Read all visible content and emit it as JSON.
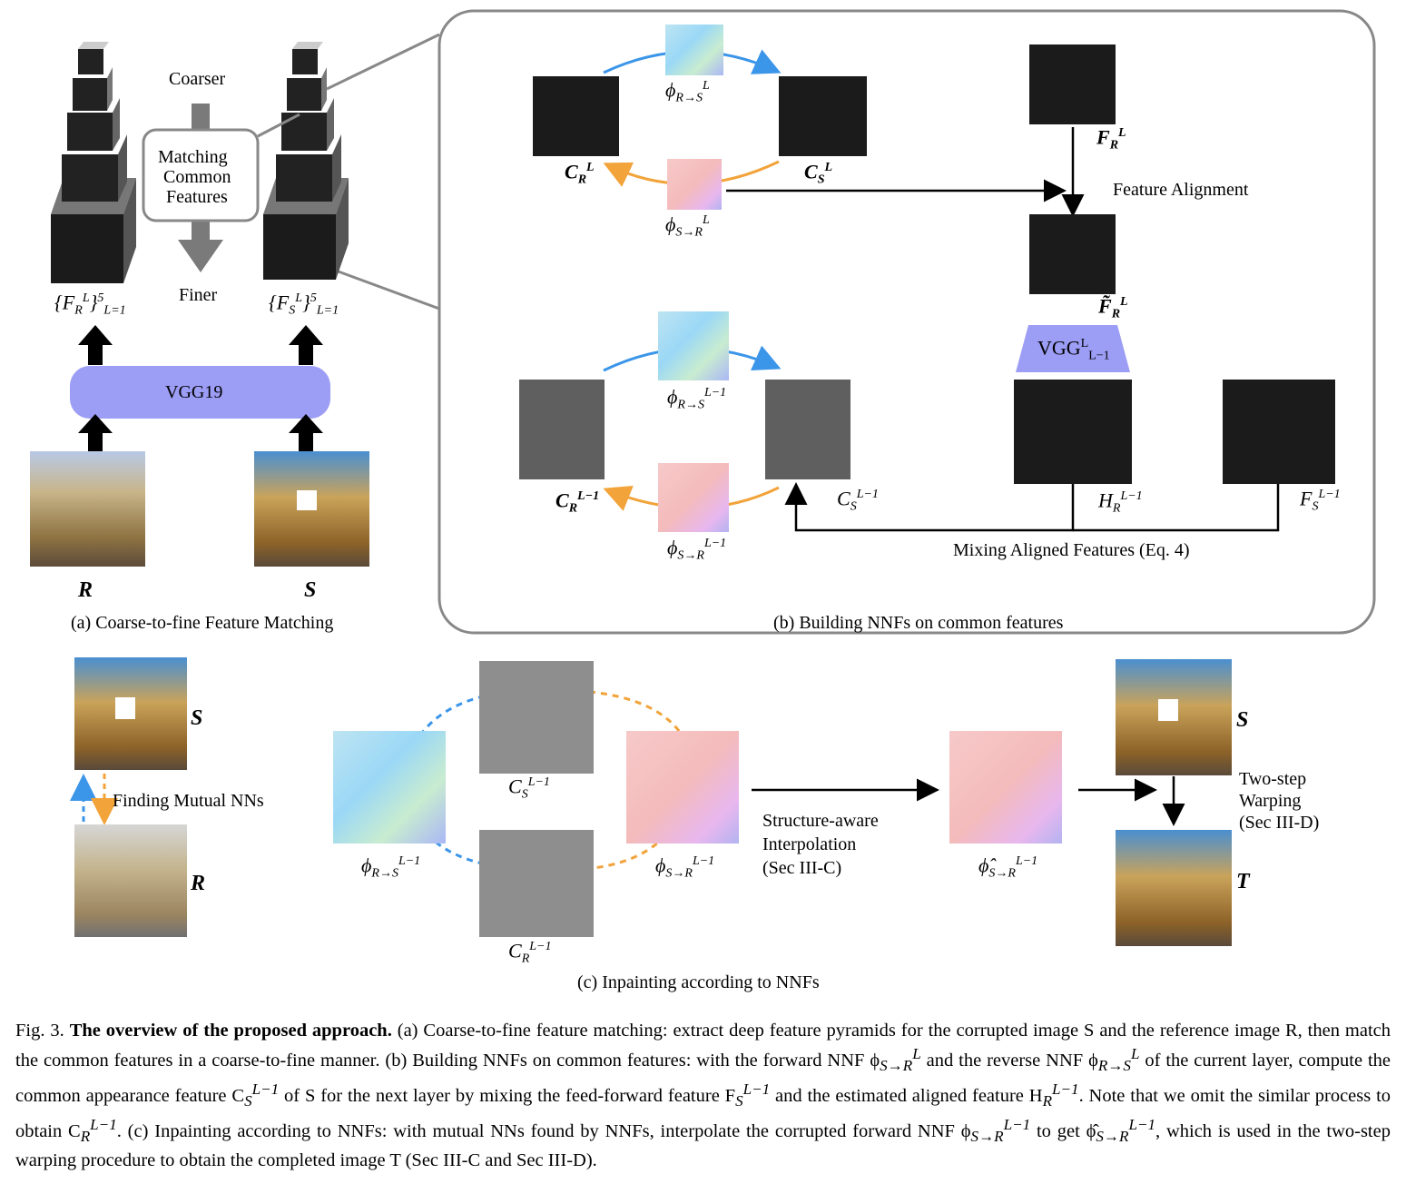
{
  "panel_a": {
    "coarser": "Coarser",
    "finer": "Finer",
    "matching_line1": "Matching",
    "matching_line2": "Common",
    "matching_line3": "Features",
    "vgg19": "VGG19",
    "fr_label": "{F",
    "fr_sub": "R",
    "fr_sup": "L",
    "fr_tail": "}",
    "fr_range_sup": "5",
    "fr_range_sub": "L=1",
    "fs_label": "{F",
    "fs_sub": "S",
    "fs_sup": "L",
    "fs_tail": "}",
    "fs_range_sup": "5",
    "fs_range_sub": "L=1",
    "r_label": "R",
    "s_label": "S",
    "caption": "(a) Coarse-to-fine Feature Matching"
  },
  "panel_b": {
    "phi_rs_L": "R→S",
    "phi_sr_L": "S→R",
    "sup_L": "L",
    "sup_L1": "L−1",
    "c_r": "C",
    "c_s": "C",
    "sub_r": "R",
    "sub_s": "S",
    "f_r": "F",
    "f_r_tilde": "F̃",
    "h_r": "H",
    "f_s": "F",
    "phi": "ϕ",
    "feature_alignment": "Feature Alignment",
    "vgg_L": "VGG",
    "vgg_sup": "L",
    "vgg_sub": "L−1",
    "mixing": "Mixing Aligned Features (Eq. 4)",
    "caption": "(b) Building NNFs on common features"
  },
  "panel_c": {
    "finding": "Finding Mutual NNs",
    "s_label": "S",
    "r_label": "R",
    "t_label": "T",
    "structure_line1": "Structure-aware",
    "structure_line2": "Interpolation",
    "structure_line3": "(Sec III-C)",
    "twostep_line1": "Two-step",
    "twostep_line2": "Warping",
    "twostep_line3": "(Sec III-D)",
    "phi_hat": "ϕ̂",
    "caption": "(c) Inpainting according to NNFs"
  },
  "figure_caption": {
    "prefix": "Fig.   3.",
    "title": "The overview of the proposed approach.",
    "body": " (a) Coarse-to-fine feature matching: extract deep feature pyramids for the corrupted image S and the reference image R, then match the common features in a coarse-to-fine manner. (b) Building NNFs on common features: with the forward NNF ϕ",
    "part2": " of the current layer, compute the common appearance feature C",
    "part3": " of S for the next layer by mixing the feed-forward feature F",
    "part4": " and the estimated aligned feature H",
    "part5": ". Note that we omit the similar process to obtain C",
    "part6": ". (c) Inpainting according to NNFs: with mutual NNs found by NNFs, interpolate the corrupted forward NNF ϕ",
    "part7": " to get ϕ̂",
    "part8": ", which is used in the two-step warping procedure to obtain the completed image T (Sec III-C and Sec III-D).",
    "and_reverse": " and the reverse NNF ϕ"
  },
  "colors": {
    "vgg_purple": "#9c9df5",
    "blue_arrow": "#3b95e8",
    "orange_arrow": "#f2a33a",
    "frame_gray": "#888888",
    "red": "#e03020"
  }
}
